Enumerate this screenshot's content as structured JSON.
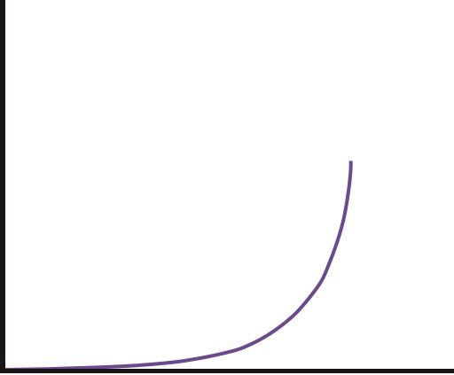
{
  "chart_data": {
    "type": "line",
    "title": "",
    "xlabel": "",
    "ylabel": "",
    "xlim": [
      0,
      1
    ],
    "ylim": [
      0,
      1
    ],
    "grid": false,
    "legend": "none",
    "colors": {
      "axis": "#1a1516",
      "series": "#6a4a8c",
      "background": "#ffffff"
    },
    "series": [
      {
        "x": [
          0.0,
          0.1,
          0.2,
          0.3,
          0.4,
          0.5,
          0.55,
          0.6,
          0.65,
          0.7,
          0.72,
          0.74,
          0.755,
          0.765,
          0.77,
          0.7705
        ],
        "y": [
          0.0,
          0.002,
          0.006,
          0.012,
          0.024,
          0.048,
          0.07,
          0.105,
          0.155,
          0.23,
          0.28,
          0.345,
          0.41,
          0.48,
          0.535,
          0.565
        ]
      }
    ]
  }
}
